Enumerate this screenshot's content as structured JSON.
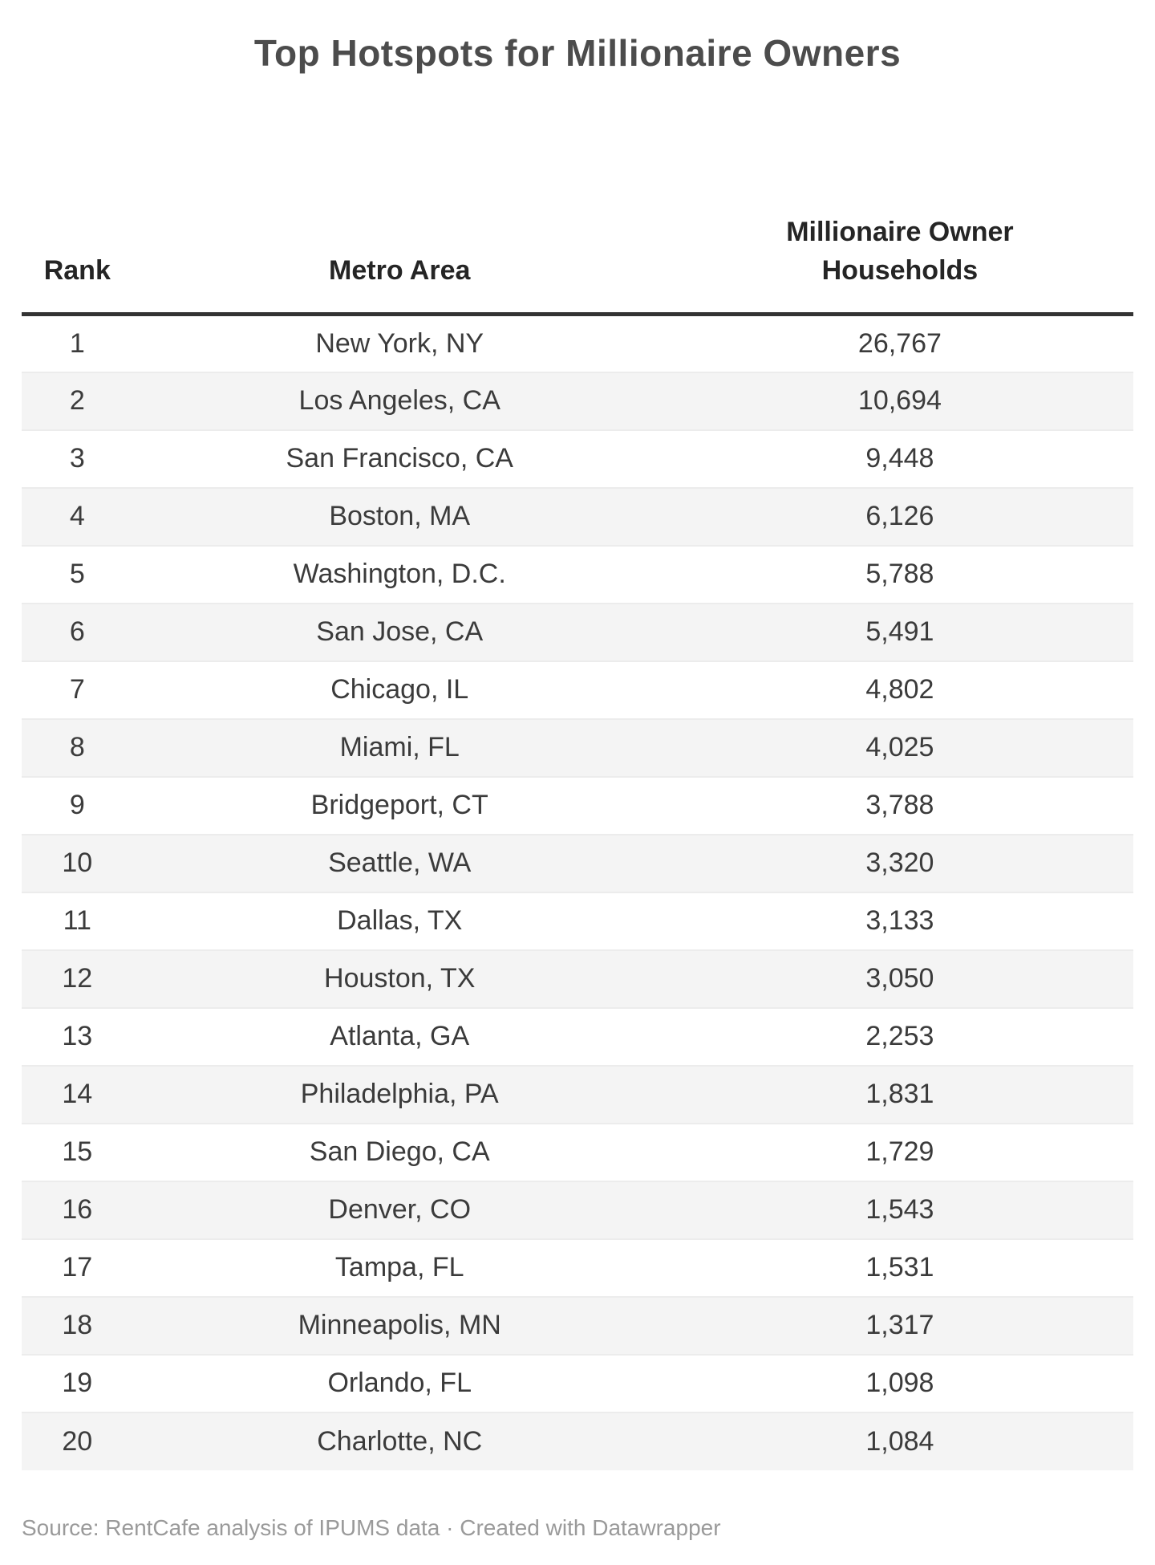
{
  "title": "Top Hotspots for Millionaire Owners",
  "table": {
    "columns": [
      {
        "key": "rank",
        "label": "Rank"
      },
      {
        "key": "metro",
        "label": "Metro Area"
      },
      {
        "key": "households",
        "label": "Millionaire Owner Households"
      }
    ],
    "rows": [
      {
        "rank": "1",
        "metro": "New York, NY",
        "households": "26,767"
      },
      {
        "rank": "2",
        "metro": "Los Angeles, CA",
        "households": "10,694"
      },
      {
        "rank": "3",
        "metro": "San Francisco, CA",
        "households": "9,448"
      },
      {
        "rank": "4",
        "metro": "Boston, MA",
        "households": "6,126"
      },
      {
        "rank": "5",
        "metro": "Washington, D.C.",
        "households": "5,788"
      },
      {
        "rank": "6",
        "metro": "San Jose, CA",
        "households": "5,491"
      },
      {
        "rank": "7",
        "metro": "Chicago, IL",
        "households": "4,802"
      },
      {
        "rank": "8",
        "metro": "Miami, FL",
        "households": "4,025"
      },
      {
        "rank": "9",
        "metro": "Bridgeport, CT",
        "households": "3,788"
      },
      {
        "rank": "10",
        "metro": "Seattle, WA",
        "households": "3,320"
      },
      {
        "rank": "11",
        "metro": "Dallas, TX",
        "households": "3,133"
      },
      {
        "rank": "12",
        "metro": "Houston, TX",
        "households": "3,050"
      },
      {
        "rank": "13",
        "metro": "Atlanta, GA",
        "households": "2,253"
      },
      {
        "rank": "14",
        "metro": "Philadelphia, PA",
        "households": "1,831"
      },
      {
        "rank": "15",
        "metro": "San Diego, CA",
        "households": "1,729"
      },
      {
        "rank": "16",
        "metro": "Denver, CO",
        "households": "1,543"
      },
      {
        "rank": "17",
        "metro": "Tampa, FL",
        "households": "1,531"
      },
      {
        "rank": "18",
        "metro": "Minneapolis, MN",
        "households": "1,317"
      },
      {
        "rank": "19",
        "metro": "Orlando, FL",
        "households": "1,098"
      },
      {
        "rank": "20",
        "metro": "Charlotte, NC",
        "households": "1,084"
      }
    ]
  },
  "footer": {
    "source_text": "Source: RentCafe analysis of IPUMS data",
    "separator": " · ",
    "credit_text": "Created with Datawrapper"
  },
  "colors": {
    "background": "#ffffff",
    "title_text": "#4c4c4c",
    "header_text": "#252525",
    "body_text": "#3b3b3b",
    "zebra_stripe": "#f4f4f4",
    "row_border": "#ececec",
    "header_rule": "#333333",
    "footer_text": "#9a9a9a"
  },
  "chart_data": {
    "type": "table",
    "title": "Top Hotspots for Millionaire Owners",
    "columns": [
      "Rank",
      "Metro Area",
      "Millionaire Owner Households"
    ],
    "rows": [
      [
        1,
        "New York, NY",
        26767
      ],
      [
        2,
        "Los Angeles, CA",
        10694
      ],
      [
        3,
        "San Francisco, CA",
        9448
      ],
      [
        4,
        "Boston, MA",
        6126
      ],
      [
        5,
        "Washington, D.C.",
        5788
      ],
      [
        6,
        "San Jose, CA",
        5491
      ],
      [
        7,
        "Chicago, IL",
        4802
      ],
      [
        8,
        "Miami, FL",
        4025
      ],
      [
        9,
        "Bridgeport, CT",
        3788
      ],
      [
        10,
        "Seattle, WA",
        3320
      ],
      [
        11,
        "Dallas, TX",
        3133
      ],
      [
        12,
        "Houston, TX",
        3050
      ],
      [
        13,
        "Atlanta, GA",
        2253
      ],
      [
        14,
        "Philadelphia, PA",
        1831
      ],
      [
        15,
        "San Diego, CA",
        1729
      ],
      [
        16,
        "Denver, CO",
        1543
      ],
      [
        17,
        "Tampa, FL",
        1531
      ],
      [
        18,
        "Minneapolis, MN",
        1317
      ],
      [
        19,
        "Orlando, FL",
        1098
      ],
      [
        20,
        "Charlotte, NC",
        1084
      ]
    ],
    "zebra_striping": true,
    "source": "Source: RentCafe analysis of IPUMS data",
    "credit": "Created with Datawrapper"
  }
}
